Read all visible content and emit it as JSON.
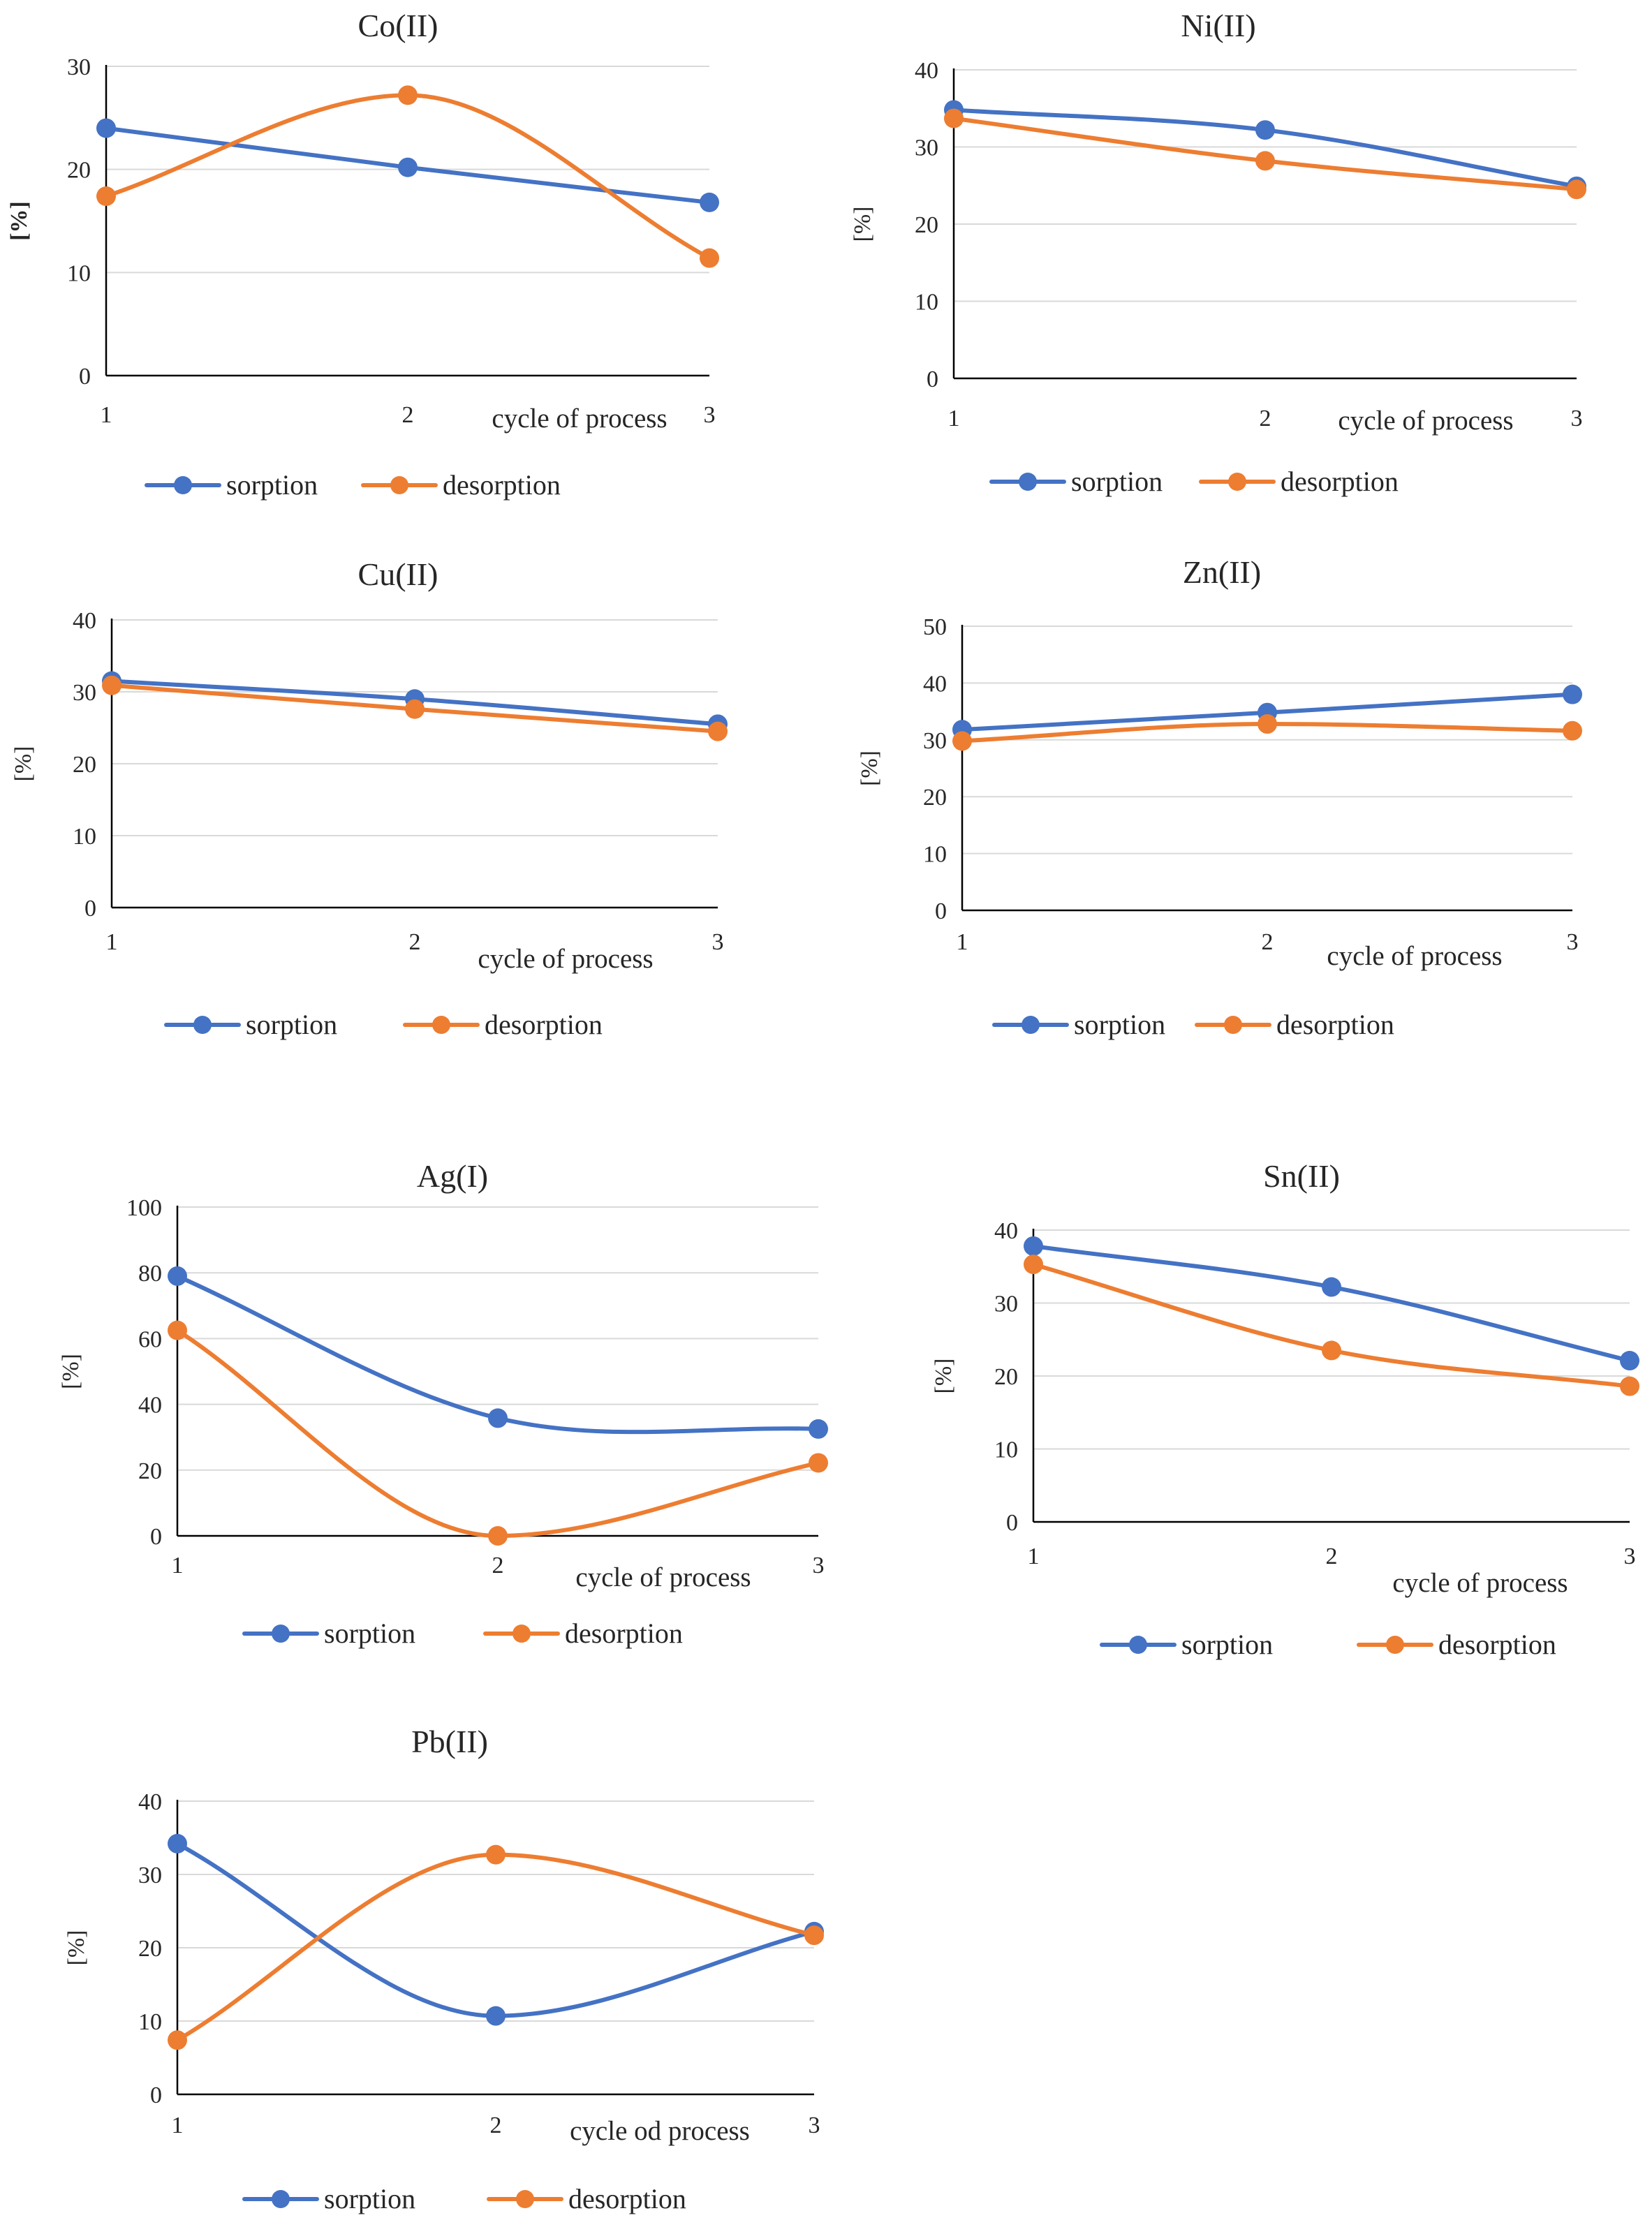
{
  "colors": {
    "sorption": "#4472C4",
    "desorption": "#ED7D31",
    "grid": "#D9D9D9",
    "axis": "#000000",
    "text": "#262626"
  },
  "chart_data": [
    {
      "type": "line",
      "title": "Co(II)",
      "ylabel": "[%]",
      "ylabel_bold": true,
      "xlabel": "cycle of process",
      "x": [
        "1",
        "2",
        "3"
      ],
      "ylim": [
        0,
        30
      ],
      "yticks": [
        "0",
        "10",
        "20",
        "30"
      ],
      "series": [
        {
          "name": "sorption",
          "values": [
            24,
            20.2,
            16.8
          ]
        },
        {
          "name": "desorption",
          "values": [
            17.4,
            27.2,
            11.4
          ]
        }
      ]
    },
    {
      "type": "line",
      "title": "Ni(II)",
      "ylabel": "[%]",
      "ylabel_bold": false,
      "xlabel": "cycle of process",
      "x": [
        "1",
        "2",
        "3"
      ],
      "ylim": [
        0,
        40
      ],
      "yticks": [
        "0",
        "10",
        "20",
        "30",
        "40"
      ],
      "series": [
        {
          "name": "sorption",
          "values": [
            34.8,
            32.2,
            24.9
          ]
        },
        {
          "name": "desorption",
          "values": [
            33.7,
            28.2,
            24.5
          ]
        }
      ]
    },
    {
      "type": "line",
      "title": "Cu(II)",
      "ylabel": "[%]",
      "ylabel_bold": false,
      "xlabel": "cycle of process",
      "x": [
        "1",
        "2",
        "3"
      ],
      "ylim": [
        0,
        40
      ],
      "yticks": [
        "0",
        "10",
        "20",
        "30",
        "40"
      ],
      "series": [
        {
          "name": "sorption",
          "values": [
            31.5,
            29,
            25.5
          ]
        },
        {
          "name": "desorption",
          "values": [
            30.9,
            27.6,
            24.5
          ]
        }
      ]
    },
    {
      "type": "line",
      "title": "Zn(II)",
      "ylabel": "[%]",
      "ylabel_bold": false,
      "xlabel": "cycle of process",
      "x": [
        "1",
        "2",
        "3"
      ],
      "ylim": [
        0,
        50
      ],
      "yticks": [
        "0",
        "10",
        "20",
        "30",
        "40",
        "50"
      ],
      "series": [
        {
          "name": "sorption",
          "values": [
            31.8,
            34.8,
            38
          ]
        },
        {
          "name": "desorption",
          "values": [
            29.8,
            32.8,
            31.6
          ]
        }
      ]
    },
    {
      "type": "line",
      "title": "Ag(I)",
      "ylabel": "[%]",
      "ylabel_bold": false,
      "xlabel": "cycle of process",
      "x": [
        "1",
        "2",
        "3"
      ],
      "ylim": [
        0,
        100
      ],
      "yticks": [
        "0",
        "20",
        "40",
        "60",
        "80",
        "100"
      ],
      "series": [
        {
          "name": "sorption",
          "values": [
            79,
            35.8,
            32.5
          ]
        },
        {
          "name": "desorption",
          "values": [
            62.5,
            0,
            22.2
          ]
        }
      ]
    },
    {
      "type": "line",
      "title": "Sn(II)",
      "ylabel": "[%]",
      "ylabel_bold": false,
      "xlabel": "cycle of process",
      "x": [
        "1",
        "2",
        "3"
      ],
      "ylim": [
        0,
        40
      ],
      "yticks": [
        "0",
        "10",
        "20",
        "30",
        "40"
      ],
      "series": [
        {
          "name": "sorption",
          "values": [
            37.8,
            32.2,
            22.1
          ]
        },
        {
          "name": "desorption",
          "values": [
            35.3,
            23.5,
            18.6
          ]
        }
      ]
    },
    {
      "type": "line",
      "title": "Pb(II)",
      "ylabel": "[%]",
      "ylabel_bold": false,
      "xlabel": "cycle od process",
      "x": [
        "1",
        "2",
        "3"
      ],
      "ylim": [
        0,
        40
      ],
      "yticks": [
        "0",
        "10",
        "20",
        "30",
        "40"
      ],
      "series": [
        {
          "name": "sorption",
          "values": [
            34.2,
            10.7,
            22.2
          ]
        },
        {
          "name": "desorption",
          "values": [
            7.4,
            32.7,
            21.7
          ]
        }
      ]
    }
  ]
}
